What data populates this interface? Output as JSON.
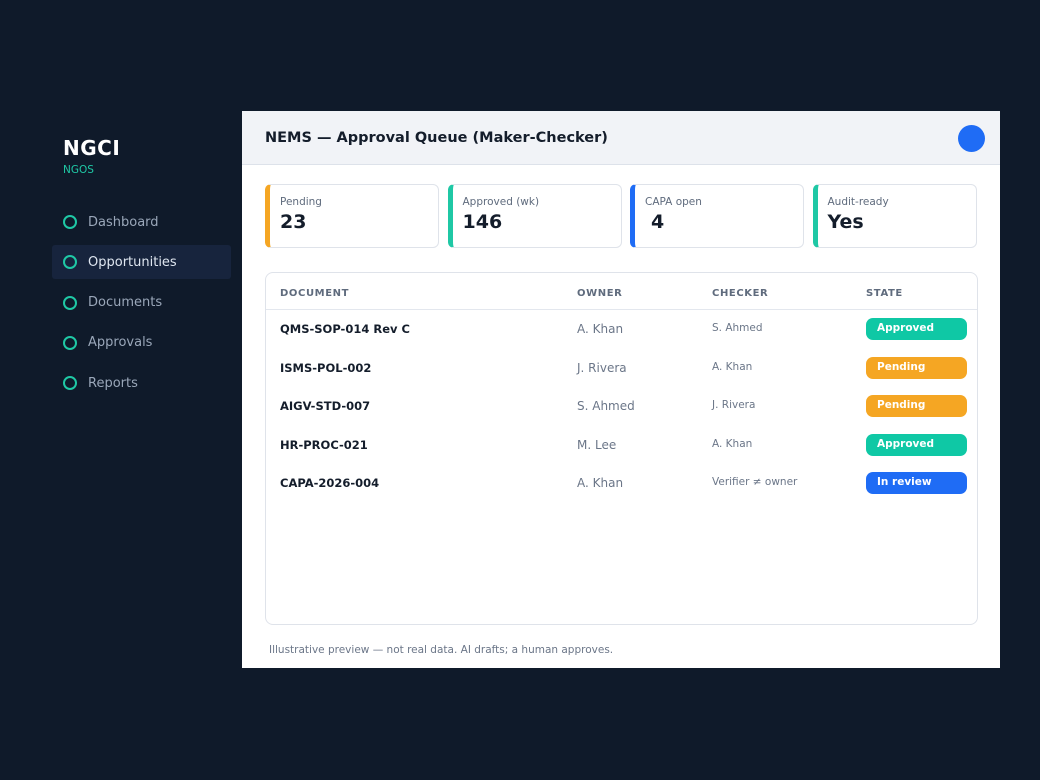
{
  "brand": {
    "name": "NGCI",
    "subtitle": "NGOS"
  },
  "nav": {
    "items": [
      {
        "label": "Dashboard",
        "active": false
      },
      {
        "label": "Opportunities",
        "active": true
      },
      {
        "label": "Documents",
        "active": false
      },
      {
        "label": "Approvals",
        "active": false
      },
      {
        "label": "Reports",
        "active": false
      }
    ]
  },
  "header": {
    "title": "NEMS — Approval Queue (Maker-Checker)"
  },
  "stats": [
    {
      "label": "Pending",
      "value": "23",
      "color": "#f5a623"
    },
    {
      "label": "Approved (wk)",
      "value": "146",
      "color": "#1fc8a5"
    },
    {
      "label": "CAPA open",
      "value": "4",
      "color": "#1f6cf5"
    },
    {
      "label": "Audit-ready",
      "value": "Yes",
      "color": "#1fc8a5"
    }
  ],
  "table": {
    "columns": {
      "document": "DOCUMENT",
      "owner": "OWNER",
      "checker": "CHECKER",
      "state": "STATE"
    },
    "rows": [
      {
        "document": "QMS-SOP-014 Rev C",
        "owner": "A. Khan",
        "checker": "S. Ahmed",
        "state": "Approved",
        "state_color": "#0fc8a5"
      },
      {
        "document": "ISMS-POL-002",
        "owner": "J. Rivera",
        "checker": "A. Khan",
        "state": "Pending",
        "state_color": "#f5a623"
      },
      {
        "document": "AIGV-STD-007",
        "owner": "S. Ahmed",
        "checker": "J. Rivera",
        "state": "Pending",
        "state_color": "#f5a623"
      },
      {
        "document": "HR-PROC-021",
        "owner": "M. Lee",
        "checker": "A. Khan",
        "state": "Approved",
        "state_color": "#0fc8a5"
      },
      {
        "document": "CAPA-2026-004",
        "owner": "A. Khan",
        "checker": "Verifier ≠ owner",
        "state": "In review",
        "state_color": "#1f6cf5"
      }
    ]
  },
  "footnote": "Illustrative preview — not real data. AI drafts; a human approves.",
  "colors": {
    "background": "#0f1a2a",
    "accent": "#1fc8a5",
    "avatar": "#1f6cf5"
  }
}
